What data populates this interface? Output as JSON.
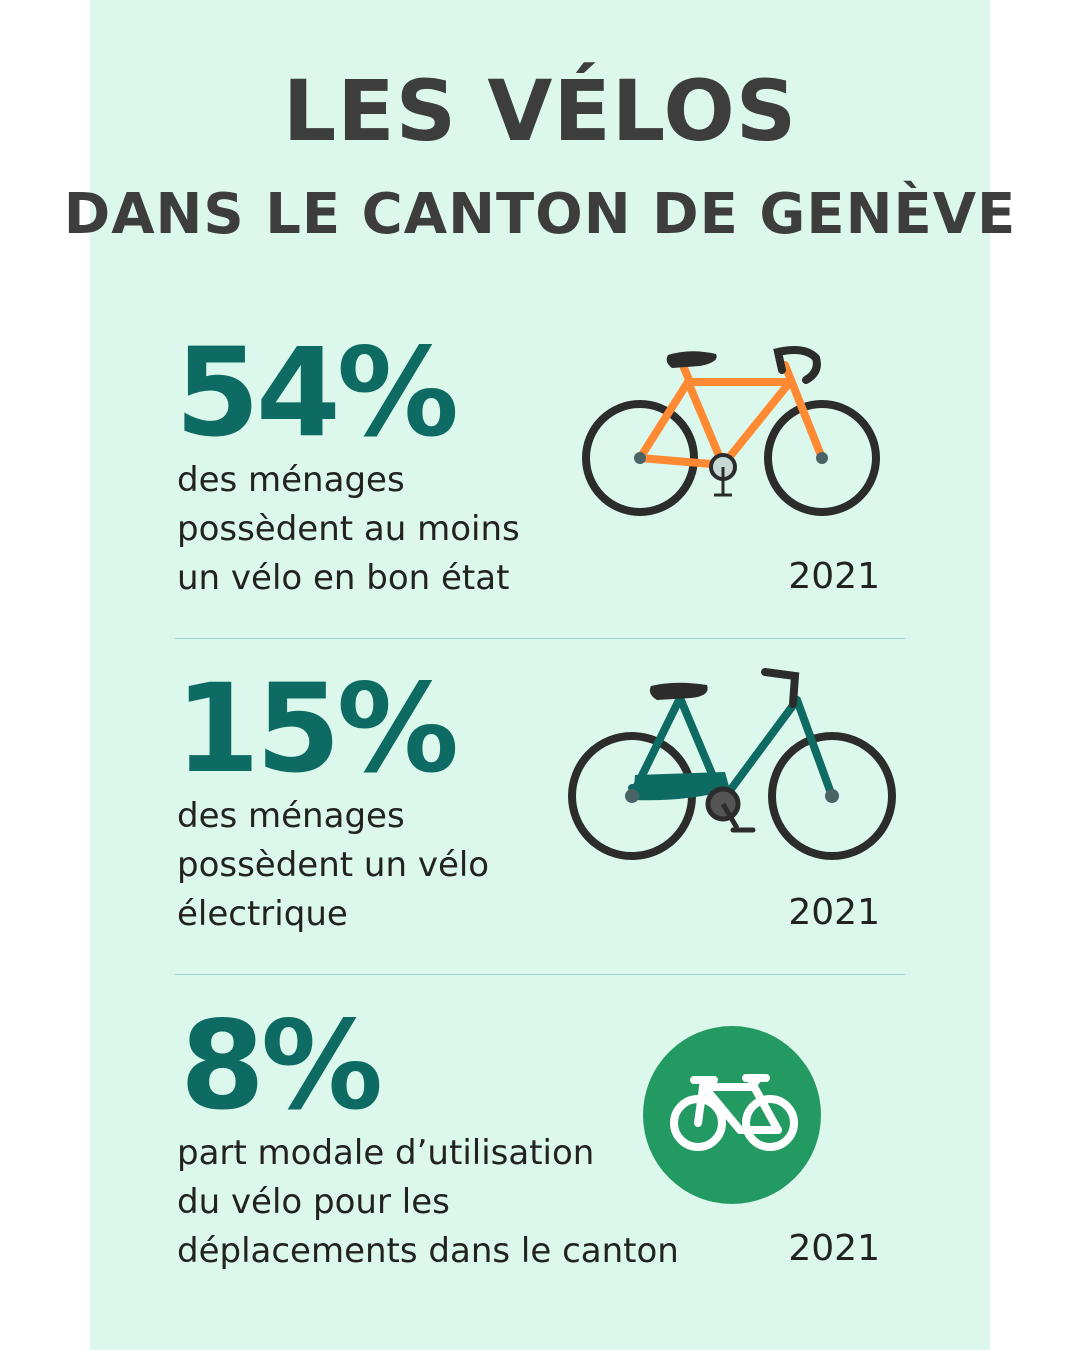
{
  "header": {
    "title": "LES VÉLOS",
    "subtitle": "DANS LE CANTON DE GENÈVE"
  },
  "colors": {
    "background": "#dcf8ec",
    "accent": "#0e6b63",
    "orange": "#ff8a33",
    "green_circle": "#239a62"
  },
  "stats": [
    {
      "value": "54%",
      "lines": [
        "des ménages",
        "possèdent au moins",
        "un vélo en bon état"
      ],
      "year": "2021",
      "icon": "orange-road-bicycle-icon"
    },
    {
      "value": "15%",
      "lines": [
        "des ménages",
        "possèdent un vélo",
        "électrique"
      ],
      "year": "2021",
      "icon": "teal-electric-bicycle-icon"
    },
    {
      "value": "8%",
      "lines": [
        "part modale d’utilisation",
        "du vélo pour les",
        "déplacements dans le canton"
      ],
      "year": "2021",
      "icon": "bicycle-circle-icon"
    }
  ]
}
